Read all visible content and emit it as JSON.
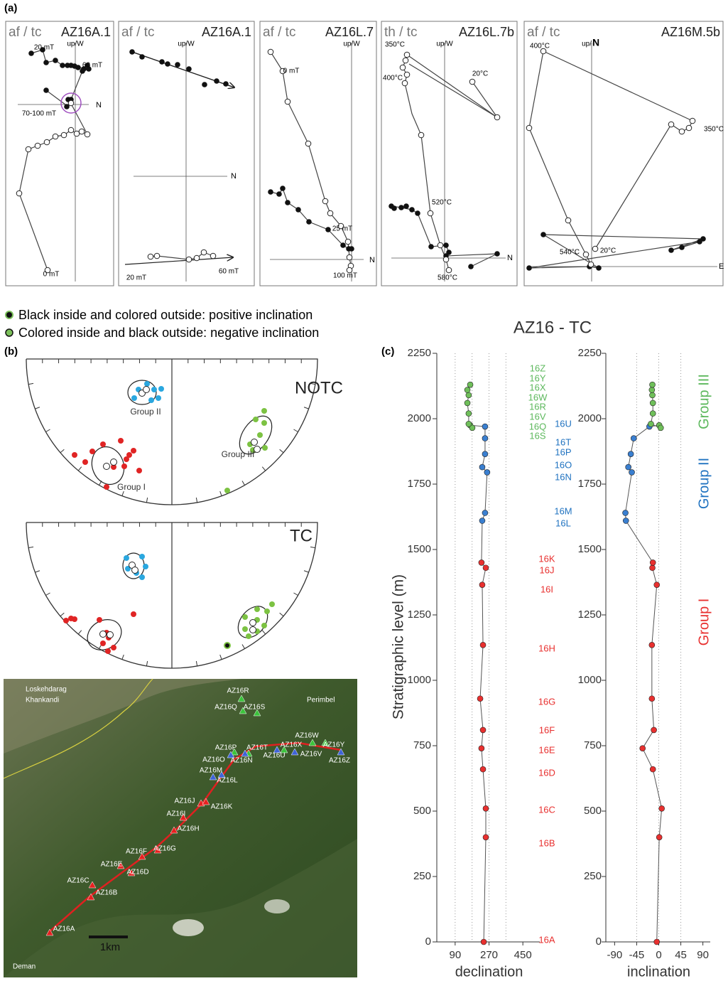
{
  "panel_a": {
    "label": "(a)",
    "plots": [
      {
        "method": "af / tc",
        "sample": "AZ16A.1",
        "up": "up/W",
        "axis": "N",
        "labels": [
          "20 mT",
          "60 mT",
          "70-100 mT",
          "0 mT"
        ]
      },
      {
        "method": "af / tc",
        "sample": "AZ16A.1",
        "up": "up/W",
        "axis": "N",
        "labels": [
          "20 mT",
          "60 mT"
        ]
      },
      {
        "method": "af / tc",
        "sample": "AZ16L.7",
        "up": "up/W",
        "axis": "N",
        "labels": [
          "0 mT",
          "25 mT",
          "100 mT"
        ]
      },
      {
        "method": "th / tc",
        "sample": "AZ16L.7b",
        "up": "up/W",
        "axis": "N",
        "labels": [
          "350°C",
          "400°C",
          "20°C",
          "520°C",
          "580°C"
        ]
      },
      {
        "method": "af / tc",
        "sample": "AZ16M.5b",
        "up": "up/",
        "up_bold": "N",
        "axis": "E",
        "labels": [
          "400°C",
          "350°C",
          "540°C",
          "20°C"
        ]
      }
    ]
  },
  "legend": [
    "Black inside and colored outside: positive inclination",
    "Colored inside and black outside: negative inclination"
  ],
  "panel_b": {
    "label": "(b)",
    "nets": [
      {
        "title": "NOTC",
        "groups": [
          "Group II",
          "Group I",
          "Group III"
        ]
      },
      {
        "title": "TC"
      }
    ]
  },
  "map": {
    "places": [
      "Loskehdarag",
      "Khankandi",
      "Perimbel",
      "Deman"
    ],
    "samples": [
      "AZ16R",
      "AZ16Q",
      "AZ16S",
      "AZ16W",
      "AZ16P",
      "AZ16T",
      "AZ16X",
      "AZ16Y",
      "AZ16O",
      "AZ16N",
      "AZ16U",
      "AZ16V",
      "AZ16Z",
      "AZ16M",
      "AZ16L",
      "AZ16J",
      "AZ16K",
      "AZ16I",
      "AZ16H",
      "AZ16G",
      "AZ16F",
      "AZ16E",
      "AZ16D",
      "AZ16C",
      "AZ16B",
      "AZ16A"
    ],
    "scale": "1km"
  },
  "panel_c": {
    "label": "(c)",
    "title": "AZ16 - TC",
    "groups": [
      {
        "name": "Group III",
        "color": "#5cb85c",
        "samples": [
          "16Z",
          "16Y",
          "16X",
          "16W",
          "16R",
          "16V",
          "16Q",
          "16S"
        ]
      },
      {
        "name": "Group II",
        "color": "#1f72c0",
        "samples": [
          "16U",
          "16T",
          "16P",
          "16O",
          "16N",
          "16M",
          "16L"
        ]
      },
      {
        "name": "Group I",
        "color": "#e8302f",
        "samples": [
          "16K",
          "16J",
          "16I",
          "16H",
          "16G",
          "16F",
          "16E",
          "16D",
          "16C",
          "16B",
          "16A"
        ]
      }
    ]
  },
  "chart_data": [
    {
      "type": "line",
      "y_label": "Stratigraphic level (m)",
      "x_label": "declination",
      "x": [
        242,
        253,
        253,
        238,
        230,
        238,
        223,
        238,
        234,
        253,
        230,
        234,
        249,
        260,
        234,
        249,
        249,
        249,
        170,
        181,
        162,
        162,
        155,
        162,
        155,
        170
      ],
      "values": [
        0,
        400,
        510,
        660,
        740,
        810,
        930,
        1135,
        1365,
        1430,
        1450,
        1610,
        1640,
        1795,
        1815,
        1865,
        1925,
        1970,
        1975,
        1965,
        1980,
        2020,
        2060,
        2090,
        2110,
        2130
      ],
      "point_colors": [
        "#e8302f",
        "#e8302f",
        "#e8302f",
        "#e8302f",
        "#e8302f",
        "#e8302f",
        "#e8302f",
        "#e8302f",
        "#e8302f",
        "#e8302f",
        "#e8302f",
        "#3a7fd0",
        "#3a7fd0",
        "#3a7fd0",
        "#3a7fd0",
        "#3a7fd0",
        "#3a7fd0",
        "#3a7fd0",
        "#6fbf5a",
        "#6fbf5a",
        "#6fbf5a",
        "#6fbf5a",
        "#6fbf5a",
        "#6fbf5a",
        "#6fbf5a",
        "#6fbf5a"
      ],
      "line_color": "#555555",
      "xlim": [
        0,
        540
      ],
      "xticks": [
        90,
        270,
        450
      ],
      "xgrid": [
        90,
        180,
        270,
        360
      ],
      "ylim": [
        0,
        2250
      ],
      "yticks": [
        0,
        250,
        500,
        750,
        1000,
        1250,
        1500,
        1750,
        2000,
        2250
      ]
    },
    {
      "type": "line",
      "x_label": "inclination",
      "x": [
        -4,
        1,
        6,
        -12,
        -33,
        -10,
        -14,
        -14,
        -4,
        -13,
        -12,
        -67,
        -68,
        -55,
        -62,
        -57,
        -51,
        -19,
        1,
        4,
        -16,
        -12,
        -12,
        -13,
        -14,
        -13
      ],
      "values": [
        0,
        400,
        510,
        660,
        740,
        810,
        930,
        1135,
        1365,
        1430,
        1450,
        1610,
        1640,
        1795,
        1815,
        1865,
        1925,
        1970,
        1975,
        1965,
        1980,
        2020,
        2060,
        2090,
        2110,
        2130
      ],
      "point_colors": [
        "#e8302f",
        "#e8302f",
        "#e8302f",
        "#e8302f",
        "#e8302f",
        "#e8302f",
        "#e8302f",
        "#e8302f",
        "#e8302f",
        "#e8302f",
        "#e8302f",
        "#3a7fd0",
        "#3a7fd0",
        "#3a7fd0",
        "#3a7fd0",
        "#3a7fd0",
        "#3a7fd0",
        "#3a7fd0",
        "#6fbf5a",
        "#6fbf5a",
        "#6fbf5a",
        "#6fbf5a",
        "#6fbf5a",
        "#6fbf5a",
        "#6fbf5a",
        "#6fbf5a"
      ],
      "line_color": "#555555",
      "xlim": [
        -105,
        105
      ],
      "xticks": [
        -90,
        -45,
        0,
        45,
        90
      ],
      "xgrid": [
        -45,
        0,
        45
      ],
      "ylim": [
        0,
        2250
      ],
      "yticks": [
        0,
        250,
        500,
        750,
        1000,
        1250,
        1500,
        1750,
        2000,
        2250
      ]
    }
  ]
}
